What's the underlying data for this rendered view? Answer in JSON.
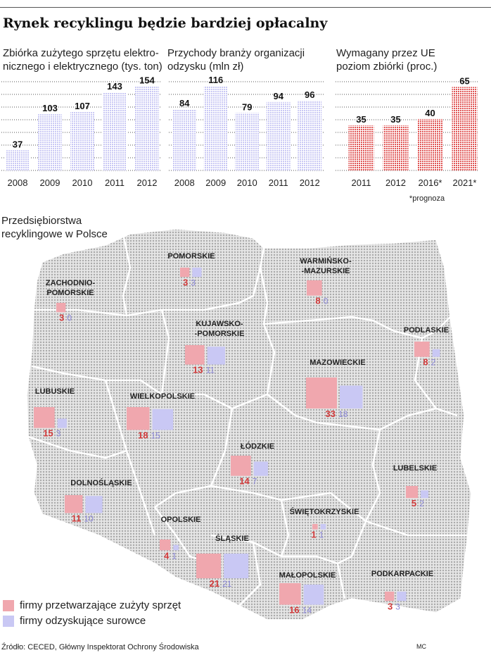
{
  "title": "Rynek recyklingu będzie bardziej opłacalny",
  "colors": {
    "processing": "#f0a7ae",
    "recovery": "#c9c8f4",
    "mandated": "#e05555",
    "grid": "#555555",
    "map_fill": "#c9c9c9"
  },
  "chart_data": [
    {
      "type": "bar",
      "title": "Zbiórka zużytego sprzętu elektro- nicznego i elektrycznego (tys. ton)",
      "title_lines": [
        "Zbiórka zużytego sprzętu elektro-",
        "nicznego i elektrycznego (tys. ton)"
      ],
      "categories": [
        "2008",
        "2009",
        "2010",
        "2011",
        "2012"
      ],
      "values": [
        37,
        103,
        107,
        143,
        154
      ],
      "ylim": [
        0,
        160
      ]
    },
    {
      "type": "bar",
      "title": "Przychody branży organizacji odzysku (mln zł)",
      "title_lines": [
        "Przychody branży organizacji",
        "odzysku (mln zł)"
      ],
      "categories": [
        "2008",
        "2009",
        "2010",
        "2011",
        "2012"
      ],
      "values": [
        84,
        116,
        79,
        94,
        96
      ],
      "ylim": [
        0,
        120
      ]
    },
    {
      "type": "bar",
      "title": "Wymagany przez UE poziom zbiórki (proc.)",
      "title_lines": [
        "Wymagany przez UE",
        "poziom zbiórki (proc.)"
      ],
      "categories": [
        "2011",
        "2012",
        "2016*",
        "2021*"
      ],
      "values": [
        35,
        35,
        40,
        65
      ],
      "ylim": [
        0,
        68
      ],
      "note": "*prognoza"
    },
    {
      "type": "bar",
      "title": "Przedsiębiorstwa recyklingowe w Polsce",
      "title_lines": [
        "Przedsiębiorstwa",
        "recyklingowe w Polsce"
      ],
      "series": [
        {
          "name": "firmy przetwarzające zużyty sprzęt",
          "key": "processing"
        },
        {
          "name": "firmy odzyskujące surowce",
          "key": "recovery"
        }
      ],
      "regions": [
        {
          "name": "ZACHODNIO-POMORSKIE",
          "label_lines": [
            "ZACHODNIO-",
            "POMORSKIE"
          ],
          "processing": 3,
          "recovery": 0
        },
        {
          "name": "POMORSKIE",
          "label_lines": [
            "POMORSKIE"
          ],
          "processing": 3,
          "recovery": 3
        },
        {
          "name": "WARMIŃSKO-MAZURSKIE",
          "label_lines": [
            "WARMIŃSKO-",
            "-MAZURSKIE"
          ],
          "processing": 8,
          "recovery": 0
        },
        {
          "name": "KUJAWSKO-POMORSKIE",
          "label_lines": [
            "KUJAWSKO-",
            "-POMORSKIE"
          ],
          "processing": 13,
          "recovery": 11
        },
        {
          "name": "PODLASKIE",
          "label_lines": [
            "PODLASKIE"
          ],
          "processing": 8,
          "recovery": 2
        },
        {
          "name": "MAZOWIECKIE",
          "label_lines": [
            "MAZOWIECKIE"
          ],
          "processing": 33,
          "recovery": 18
        },
        {
          "name": "LUBUSKIE",
          "label_lines": [
            "LUBUSKIE"
          ],
          "processing": 15,
          "recovery": 3
        },
        {
          "name": "WIELKOPOLSKIE",
          "label_lines": [
            "WIELKOPOLSKIE"
          ],
          "processing": 18,
          "recovery": 15
        },
        {
          "name": "ŁÓDZKIE",
          "label_lines": [
            "ŁÓDZKIE"
          ],
          "processing": 14,
          "recovery": 7
        },
        {
          "name": "LUBELSKIE",
          "label_lines": [
            "LUBELSKIE"
          ],
          "processing": 5,
          "recovery": 2
        },
        {
          "name": "DOLNOŚLĄSKIE",
          "label_lines": [
            "DOLNOŚLĄSKIE"
          ],
          "processing": 11,
          "recovery": 10
        },
        {
          "name": "ŚWIĘTOKRZYSKIE",
          "label_lines": [
            "ŚWIĘTOKRZYSKIE"
          ],
          "processing": 1,
          "recovery": 1
        },
        {
          "name": "OPOLSKIE",
          "label_lines": [
            "OPOLSKIE"
          ],
          "processing": 4,
          "recovery": 1
        },
        {
          "name": "ŚLĄSKIE",
          "label_lines": [
            "ŚLĄSKIE"
          ],
          "processing": 21,
          "recovery": 21
        },
        {
          "name": "MAŁOPOLSKIE",
          "label_lines": [
            "MAŁOPOLSKIE"
          ],
          "processing": 16,
          "recovery": 14
        },
        {
          "name": "PODKARPACKIE",
          "label_lines": [
            "PODKARPACKIE"
          ],
          "processing": 3,
          "recovery": 3
        }
      ]
    }
  ],
  "source": "Źródło: CECED, Główny Inspektorat Ochrony Środowiska",
  "author": "MC"
}
